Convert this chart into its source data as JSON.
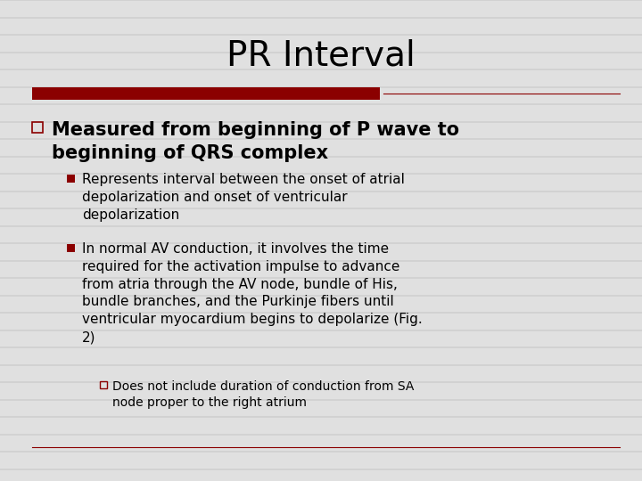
{
  "title": "PR Interval",
  "bg_color": "#e0e0e0",
  "title_color": "#000000",
  "title_fontsize": 28,
  "accent_color": "#8B0000",
  "line_color": "#8B0000",
  "bullet1_marker_color": "#8B0000",
  "bullet1_text": "Measured from beginning of P wave to\nbeginning of QRS complex",
  "bullet1_fontsize": 15,
  "sub_bullet1_text": "Represents interval between the onset of atrial\ndepolarization and onset of ventricular\ndepolarization",
  "sub_bullet1_fontsize": 11,
  "sub_bullet2_text": "In normal AV conduction, it involves the time\nrequired for the activation impulse to advance\nfrom atria through the AV node, bundle of His,\nbundle branches, and the Purkinje fibers until\nventricular myocardium begins to depolarize (Fig.\n2)",
  "sub_bullet2_fontsize": 11,
  "sub_sub_bullet1_text": "Does not include duration of conduction from SA\nnode proper to the right atrium",
  "sub_sub_bullet1_fontsize": 10,
  "stripe_color": "#d0d0d0",
  "font_family": "DejaVu Sans"
}
